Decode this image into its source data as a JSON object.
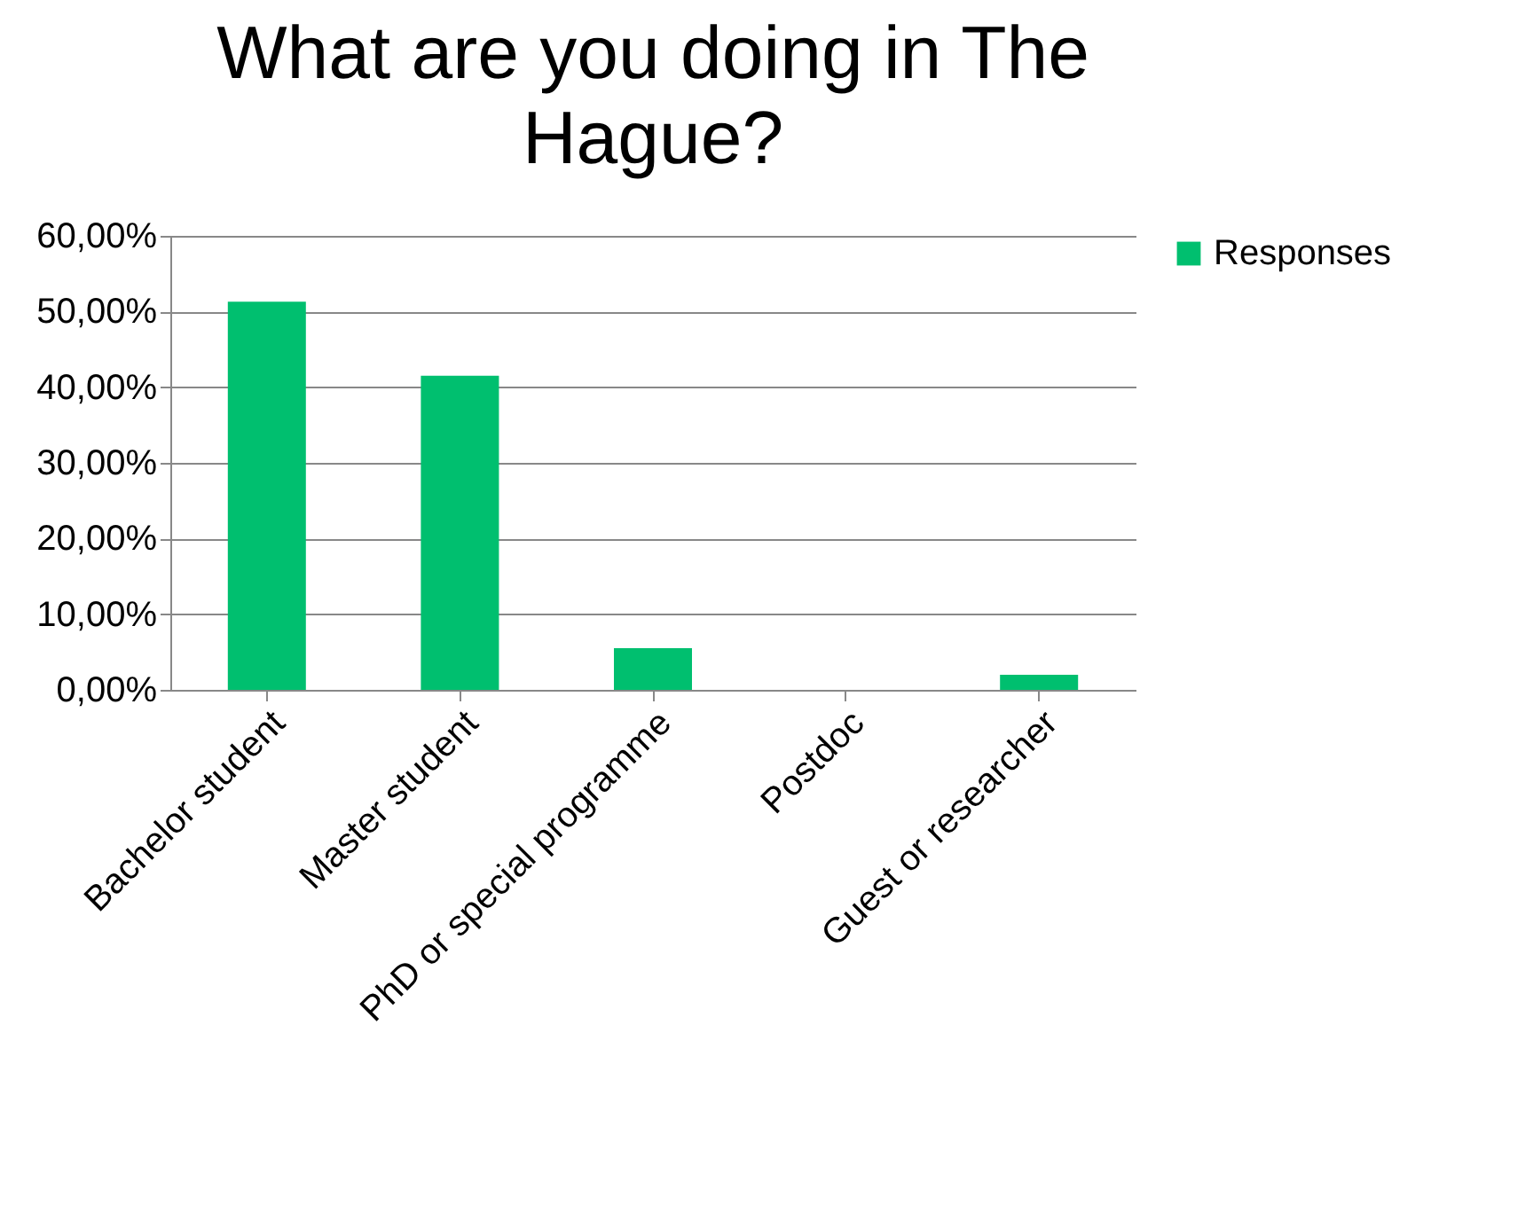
{
  "chart_data": {
    "type": "bar",
    "title": "What are you doing in The Hague?",
    "categories": [
      "Bachelor student",
      "Master student",
      "PhD or special programme",
      "Postdoc",
      "Guest or researcher"
    ],
    "series": [
      {
        "name": "Responses",
        "color": "#00bf6f",
        "values": [
          51.3,
          41.5,
          5.5,
          0,
          2.0
        ]
      }
    ],
    "ylim": [
      0,
      60
    ],
    "yticks": [
      {
        "value": 0,
        "label": "0,00%"
      },
      {
        "value": 10,
        "label": "10,00%"
      },
      {
        "value": 20,
        "label": "20,00%"
      },
      {
        "value": 30,
        "label": "30,00%"
      },
      {
        "value": 40,
        "label": "40,00%"
      },
      {
        "value": 50,
        "label": "50,00%"
      },
      {
        "value": 60,
        "label": "60,00%"
      }
    ],
    "grid": "y",
    "legend": "right"
  }
}
